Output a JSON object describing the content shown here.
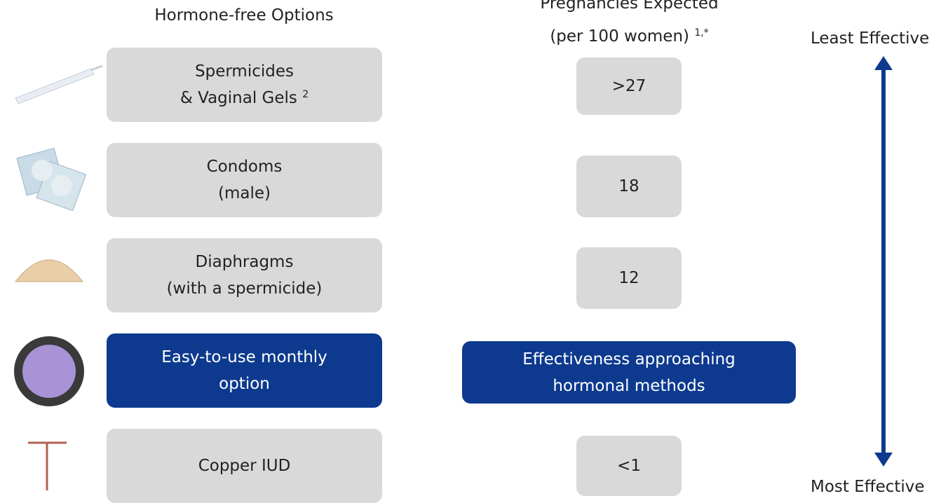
{
  "header": {
    "options_title": "Hormone-free Options",
    "result_title": "Pregnancies Expected",
    "result_subtitle": "(per 100 women)",
    "result_note": "1,*"
  },
  "scale": {
    "top": "Least Effective",
    "bottom": "Most Effective"
  },
  "rows": [
    {
      "lines": [
        "Spermicides",
        "& Vaginal Gels"
      ],
      "note": "2",
      "result": [
        ">27"
      ]
    },
    {
      "lines": [
        "Condoms",
        "(male)"
      ],
      "result": [
        "18"
      ]
    },
    {
      "lines": [
        "Diaphragms",
        "(with a spermicide)"
      ],
      "result": [
        "12"
      ]
    },
    {
      "lines": [
        "Easy-to-use monthly",
        "option"
      ],
      "result": [
        "Effectiveness approaching",
        "hormonal methods"
      ]
    },
    {
      "lines": [
        "Copper IUD"
      ],
      "result": [
        "<1"
      ]
    }
  ]
}
